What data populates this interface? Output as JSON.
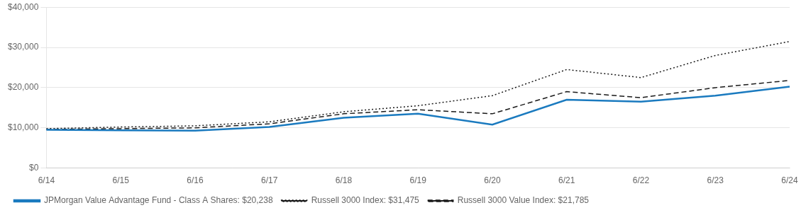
{
  "chart_data": {
    "type": "line",
    "categories": [
      "6/14",
      "6/15",
      "6/16",
      "6/17",
      "6/18",
      "6/19",
      "6/20",
      "6/21",
      "6/22",
      "6/23",
      "6/24"
    ],
    "series": [
      {
        "name": "JPMorgan Value Advantage Fund - Class A Shares: $20,238",
        "color": "#1a7abf",
        "line_style": "solid",
        "values": [
          9500,
          9400,
          9300,
          10200,
          12500,
          13500,
          10800,
          17000,
          16500,
          18000,
          20238
        ]
      },
      {
        "name": "Russell 3000 Index: $31,475",
        "color": "#1a1a1a",
        "line_style": "dotted",
        "values": [
          9800,
          10200,
          10500,
          11500,
          14000,
          15500,
          18000,
          24500,
          22500,
          28000,
          31475
        ]
      },
      {
        "name": "Russell 3000 Value Index: $21,785",
        "color": "#1a1a1a",
        "line_style": "dashed",
        "values": [
          9600,
          9800,
          10000,
          11000,
          13500,
          14500,
          13500,
          19000,
          17500,
          20000,
          21785
        ]
      }
    ],
    "ylim": [
      0,
      40000
    ],
    "yticks": [
      {
        "value": 0,
        "label": "$0"
      },
      {
        "value": 10000,
        "label": "$10,000"
      },
      {
        "value": 20000,
        "label": "$20,000"
      },
      {
        "value": 30000,
        "label": "$30,000"
      },
      {
        "value": 40000,
        "label": "$40,000"
      }
    ],
    "grid": true,
    "legend": "bottom"
  }
}
